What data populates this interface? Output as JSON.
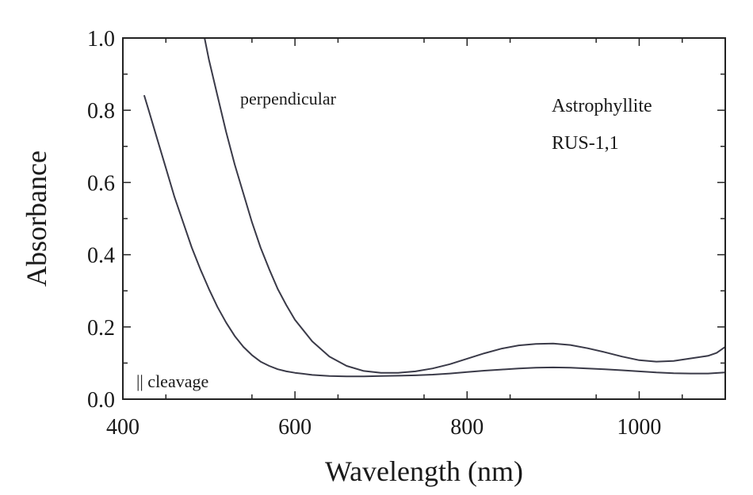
{
  "chart_data": {
    "type": "line",
    "title": "",
    "xlabel": "Wavelength (nm)",
    "ylabel": "Absorbance",
    "xlim": [
      400,
      1100
    ],
    "ylim": [
      0.0,
      1.0
    ],
    "x_ticks": [
      400,
      600,
      800,
      1000
    ],
    "x_tick_labels": [
      "400",
      "600",
      "800",
      "1000"
    ],
    "y_ticks": [
      0.0,
      0.2,
      0.4,
      0.6,
      0.8,
      1.0
    ],
    "y_tick_labels": [
      "0.0",
      "0.2",
      "0.4",
      "0.6",
      "0.8",
      "1.0"
    ],
    "grid": false,
    "annotations": {
      "mineral": "Astrophyllite",
      "sample": "RUS-1,1",
      "perpendicular_label": "perpendicular",
      "parallel_label": "|| cleavage"
    },
    "series": [
      {
        "name": "perpendicular",
        "color": "#3a3a48",
        "x": [
          495,
          500,
          510,
          520,
          530,
          540,
          550,
          560,
          570,
          580,
          590,
          600,
          620,
          640,
          660,
          680,
          700,
          720,
          740,
          760,
          780,
          800,
          820,
          840,
          860,
          880,
          900,
          920,
          940,
          960,
          980,
          1000,
          1020,
          1040,
          1060,
          1080,
          1090,
          1100
        ],
        "y": [
          1.0,
          0.94,
          0.84,
          0.74,
          0.65,
          0.57,
          0.49,
          0.42,
          0.36,
          0.305,
          0.26,
          0.22,
          0.16,
          0.118,
          0.092,
          0.078,
          0.073,
          0.073,
          0.077,
          0.085,
          0.097,
          0.112,
          0.127,
          0.14,
          0.149,
          0.153,
          0.154,
          0.15,
          0.141,
          0.13,
          0.118,
          0.108,
          0.104,
          0.106,
          0.113,
          0.12,
          0.128,
          0.145
        ]
      },
      {
        "name": "|| cleavage",
        "color": "#3a3a48",
        "x": [
          425,
          430,
          440,
          450,
          460,
          470,
          480,
          490,
          500,
          510,
          520,
          530,
          540,
          550,
          560,
          570,
          580,
          590,
          600,
          620,
          640,
          660,
          680,
          700,
          720,
          740,
          760,
          780,
          800,
          820,
          840,
          860,
          880,
          900,
          920,
          940,
          960,
          980,
          1000,
          1020,
          1040,
          1060,
          1080,
          1100
        ],
        "y": [
          0.84,
          0.8,
          0.72,
          0.64,
          0.56,
          0.49,
          0.42,
          0.36,
          0.305,
          0.255,
          0.212,
          0.175,
          0.145,
          0.122,
          0.104,
          0.092,
          0.083,
          0.077,
          0.073,
          0.067,
          0.064,
          0.063,
          0.063,
          0.064,
          0.065,
          0.066,
          0.068,
          0.071,
          0.075,
          0.079,
          0.082,
          0.085,
          0.087,
          0.088,
          0.087,
          0.085,
          0.083,
          0.08,
          0.077,
          0.074,
          0.072,
          0.071,
          0.071,
          0.074
        ]
      }
    ]
  }
}
